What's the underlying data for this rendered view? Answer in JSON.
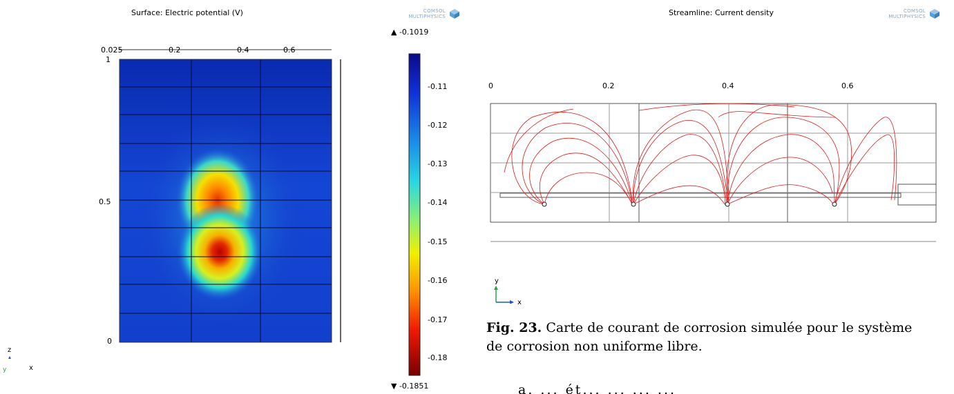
{
  "left_plot": {
    "title": "Surface: Electric potential (V)",
    "x_ticks": [
      "0.2",
      "0.4",
      "0.6"
    ],
    "x_zero_overlap": "0.025",
    "z_ticks": [
      "1",
      "0.5",
      "0"
    ],
    "axis_labels": {
      "z": "z",
      "x": "x",
      "y": "y"
    }
  },
  "colorbar": {
    "max_label": "▲ -0.1019",
    "min_label": "▼ -0.1851",
    "ticks": [
      "-0.11",
      "-0.12",
      "-0.13",
      "-0.14",
      "-0.15",
      "-0.16",
      "-0.17",
      "-0.18"
    ]
  },
  "logo": {
    "line1": "COMSOL",
    "line2": "MULTIPHYSICS"
  },
  "right_plot": {
    "title": "Streamline: Current density",
    "x_ticks": [
      "0",
      "0.2",
      "0.4",
      "0.6"
    ],
    "axis_labels": {
      "y": "y",
      "x": "x"
    }
  },
  "caption": {
    "label": "Fig. 23.",
    "text_line1": " Carte de courant de corrosion simulée pour le système",
    "text_line2": "de corrosion non uniforme libre.",
    "cut_text": "a. ... ét... ... ... ..."
  },
  "chart_data": [
    {
      "type": "heatmap",
      "title": "Surface: Electric potential (V)",
      "colorbar_range": [
        -0.1851,
        -0.1019
      ],
      "colorbar_ticks": [
        -0.11,
        -0.12,
        -0.13,
        -0.14,
        -0.15,
        -0.16,
        -0.17,
        -0.18
      ],
      "xlim": [
        0,
        0.78
      ],
      "ylim": [
        0,
        1
      ],
      "hotspots": [
        {
          "x": 0.35,
          "z": 0.5,
          "value": -0.175
        },
        {
          "x": 0.35,
          "z": 0.3,
          "value": -0.185
        }
      ],
      "grid": true
    },
    {
      "type": "line",
      "title": "Streamline: Current density",
      "x_ticks": [
        0,
        0.2,
        0.4,
        0.6
      ],
      "electrodes_x": [
        0.09,
        0.24,
        0.4,
        0.58
      ]
    }
  ]
}
